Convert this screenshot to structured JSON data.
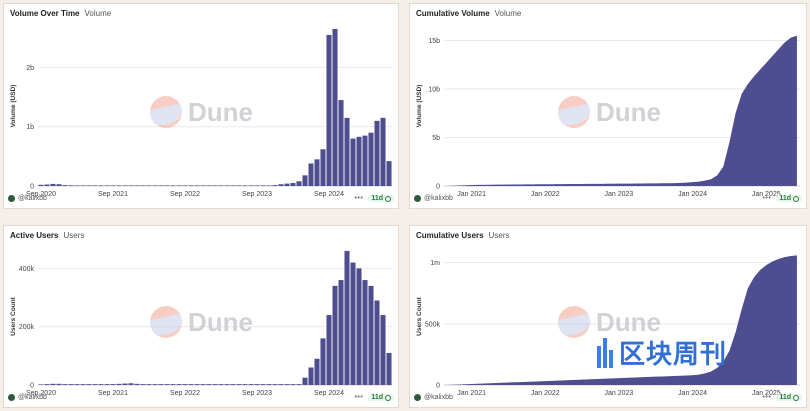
{
  "colors": {
    "series": "#4e4d8f",
    "grid": "#e8e8ee",
    "axis": "#cfcfd6"
  },
  "watermark": {
    "text": "Dune"
  },
  "corner_stamp": {
    "text": "区块周刊"
  },
  "panels": [
    {
      "title": "Volume Over Time",
      "subtitle": "Volume",
      "author": "@kalixbb",
      "menu": "•••",
      "freshness": "11d",
      "chart_data": {
        "type": "bar",
        "ylabel": "Volume (USD)",
        "y_ticks": [
          {
            "v": 0,
            "label": "0"
          },
          {
            "v": 1000000000,
            "label": "1b"
          },
          {
            "v": 2000000000,
            "label": "2b"
          }
        ],
        "ylim": [
          0,
          2700000000
        ],
        "x_ticks": [
          {
            "i": 0,
            "label": "Sep 2020"
          },
          {
            "i": 12,
            "label": "Sep 2021"
          },
          {
            "i": 24,
            "label": "Sep 2022"
          },
          {
            "i": 36,
            "label": "Sep 2023"
          },
          {
            "i": 48,
            "label": "Sep 2024"
          }
        ],
        "n": 59,
        "values": [
          20000000,
          25000000,
          35000000,
          30000000,
          15000000,
          12000000,
          10000000,
          10000000,
          8000000,
          8000000,
          7000000,
          7000000,
          6000000,
          6000000,
          6000000,
          5000000,
          5000000,
          5000000,
          5000000,
          4000000,
          4000000,
          4000000,
          4000000,
          4000000,
          4000000,
          4000000,
          4000000,
          4000000,
          4000000,
          4000000,
          4000000,
          4000000,
          5000000,
          5000000,
          5000000,
          5000000,
          6000000,
          8000000,
          10000000,
          15000000,
          30000000,
          40000000,
          50000000,
          80000000,
          180000000,
          380000000,
          450000000,
          620000000,
          2550000000,
          2650000000,
          1450000000,
          1150000000,
          800000000,
          830000000,
          850000000,
          900000000,
          1100000000,
          1150000000,
          420000000
        ]
      }
    },
    {
      "title": "Cumulative Volume",
      "subtitle": "Volume",
      "author": "@kalixbb",
      "menu": "•••",
      "freshness": "11d",
      "chart_data": {
        "type": "area",
        "ylabel": "Volume (USD)",
        "y_ticks": [
          {
            "v": 0,
            "label": "0"
          },
          {
            "v": 5000000000,
            "label": "5b"
          },
          {
            "v": 10000000000,
            "label": "10b"
          },
          {
            "v": 15000000000,
            "label": "15b"
          }
        ],
        "ylim": [
          0,
          16500000000
        ],
        "x_ticks": [
          {
            "i": 4,
            "label": "Jan 2021"
          },
          {
            "i": 16,
            "label": "Jan 2022"
          },
          {
            "i": 28,
            "label": "Jan 2023"
          },
          {
            "i": 40,
            "label": "Jan 2024"
          },
          {
            "i": 52,
            "label": "Jan 2025"
          }
        ],
        "n": 58,
        "values": [
          0,
          20000000,
          50000000,
          80000000,
          100000000,
          110000000,
          120000000,
          130000000,
          140000000,
          145000000,
          150000000,
          155000000,
          160000000,
          165000000,
          170000000,
          175000000,
          180000000,
          185000000,
          190000000,
          195000000,
          200000000,
          205000000,
          210000000,
          215000000,
          220000000,
          225000000,
          230000000,
          235000000,
          240000000,
          245000000,
          250000000,
          255000000,
          260000000,
          265000000,
          270000000,
          280000000,
          290000000,
          300000000,
          320000000,
          350000000,
          400000000,
          450000000,
          550000000,
          700000000,
          1100000000,
          2000000000,
          4500000000,
          7500000000,
          9500000000,
          10500000000,
          11300000000,
          12000000000,
          12700000000,
          13400000000,
          14100000000,
          14800000000,
          15300000000,
          15500000000
        ]
      }
    },
    {
      "title": "Active Users",
      "subtitle": "Users",
      "author": "@kalixbb",
      "menu": "•••",
      "freshness": "11d",
      "chart_data": {
        "type": "bar",
        "ylabel": "Users Count",
        "y_ticks": [
          {
            "v": 0,
            "label": "0"
          },
          {
            "v": 200000,
            "label": "200k"
          },
          {
            "v": 400000,
            "label": "400k"
          }
        ],
        "ylim": [
          0,
          470000
        ],
        "x_ticks": [
          {
            "i": 0,
            "label": "Sep 2020"
          },
          {
            "i": 12,
            "label": "Sep 2021"
          },
          {
            "i": 24,
            "label": "Sep 2022"
          },
          {
            "i": 36,
            "label": "Sep 2023"
          },
          {
            "i": 48,
            "label": "Sep 2024"
          }
        ],
        "n": 59,
        "values": [
          2000,
          3000,
          4000,
          4000,
          3000,
          3000,
          3000,
          3000,
          3000,
          3000,
          3000,
          3000,
          3000,
          4000,
          5000,
          6000,
          4000,
          3000,
          3000,
          3000,
          3000,
          3000,
          3000,
          3000,
          3000,
          3000,
          3000,
          3000,
          3000,
          3000,
          3000,
          3000,
          3000,
          3000,
          3000,
          3000,
          3000,
          3000,
          3000,
          3000,
          3000,
          3000,
          3000,
          3000,
          25000,
          60000,
          90000,
          160000,
          240000,
          340000,
          360000,
          460000,
          420000,
          400000,
          360000,
          340000,
          290000,
          240000,
          110000
        ]
      }
    },
    {
      "title": "Cumulative Users",
      "subtitle": "Users",
      "author": "@kalixbb",
      "menu": "•••",
      "freshness": "11d",
      "chart_data": {
        "type": "area",
        "ylabel": "Users Count",
        "y_ticks": [
          {
            "v": 0,
            "label": "0"
          },
          {
            "v": 500000,
            "label": "500k"
          },
          {
            "v": 1000000,
            "label": "1m"
          }
        ],
        "ylim": [
          0,
          1120000
        ],
        "x_ticks": [
          {
            "i": 4,
            "label": "Jan 2021"
          },
          {
            "i": 16,
            "label": "Jan 2022"
          },
          {
            "i": 28,
            "label": "Jan 2023"
          },
          {
            "i": 40,
            "label": "Jan 2024"
          },
          {
            "i": 52,
            "label": "Jan 2025"
          }
        ],
        "n": 58,
        "values": [
          0,
          2000,
          4000,
          6000,
          8000,
          10000,
          12000,
          14000,
          16000,
          18000,
          20000,
          22000,
          24000,
          26000,
          28000,
          30000,
          32000,
          34000,
          36000,
          38000,
          40000,
          42000,
          44000,
          46000,
          48000,
          50000,
          52000,
          54000,
          56000,
          58000,
          60000,
          62000,
          64000,
          66000,
          68000,
          70000,
          72000,
          74000,
          76000,
          78000,
          80000,
          85000,
          95000,
          110000,
          140000,
          190000,
          280000,
          430000,
          620000,
          790000,
          880000,
          940000,
          980000,
          1010000,
          1030000,
          1045000,
          1055000,
          1060000
        ]
      }
    }
  ]
}
